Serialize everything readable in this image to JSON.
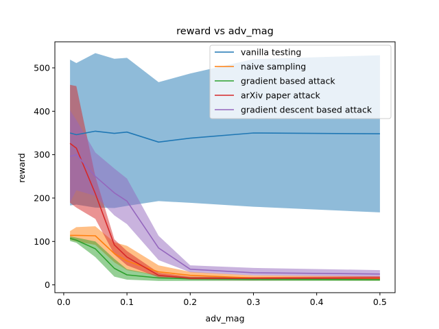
{
  "chart_data": {
    "type": "line",
    "title": "reward vs adv_mag",
    "xlabel": "adv_mag",
    "ylabel": "reward",
    "xlim": [
      -0.014,
      0.524
    ],
    "ylim": [
      -18,
      560
    ],
    "xticks": [
      0.0,
      0.1,
      0.2,
      0.3,
      0.4,
      0.5
    ],
    "xtick_labels": [
      "0.0",
      "0.1",
      "0.2",
      "0.3",
      "0.4",
      "0.5"
    ],
    "yticks": [
      0,
      100,
      200,
      300,
      400,
      500
    ],
    "ytick_labels": [
      "0",
      "100",
      "200",
      "300",
      "400",
      "500"
    ],
    "grid": false,
    "legend_position": "top-right",
    "x": [
      0.01,
      0.02,
      0.05,
      0.08,
      0.1,
      0.15,
      0.2,
      0.3,
      0.5
    ],
    "series": [
      {
        "name": "vanilla testing",
        "color": "#1f77b4",
        "values": [
          350,
          346,
          354,
          349,
          352,
          329,
          338,
          350,
          348
        ],
        "lower": [
          183,
          185,
          178,
          177,
          182,
          193,
          189,
          180,
          167
        ],
        "upper": [
          519,
          511,
          534,
          521,
          523,
          467,
          487,
          520,
          529
        ]
      },
      {
        "name": "naive sampling",
        "color": "#ff7f0e",
        "values": [
          114,
          114,
          113,
          72,
          55,
          30,
          22,
          16,
          15
        ],
        "lower": [
          104,
          100,
          92,
          52,
          34,
          21,
          14,
          11,
          10
        ],
        "upper": [
          124,
          133,
          135,
          98,
          90,
          45,
          30,
          22,
          20
        ]
      },
      {
        "name": "gradient based attack",
        "color": "#2ca02c",
        "values": [
          107,
          103,
          83,
          38,
          23,
          16,
          14,
          13,
          12
        ],
        "lower": [
          101,
          97,
          64,
          19,
          12,
          9,
          9,
          9,
          9
        ],
        "upper": [
          112,
          109,
          100,
          60,
          36,
          22,
          18,
          17,
          15
        ]
      },
      {
        "name": "arXiv paper attack",
        "color": "#d62728",
        "values": [
          326,
          315,
          210,
          92,
          64,
          22,
          15,
          15,
          16
        ],
        "lower": [
          189,
          178,
          152,
          70,
          45,
          17,
          12,
          11,
          12
        ],
        "upper": [
          461,
          458,
          250,
          105,
          78,
          28,
          19,
          18,
          20
        ]
      },
      {
        "name": "gradient descent based attack",
        "color": "#9467bd",
        "values": [
          296,
          300,
          250,
          212,
          193,
          85,
          36,
          28,
          25
        ],
        "lower": [
          190,
          218,
          205,
          160,
          140,
          57,
          29,
          22,
          19
        ],
        "upper": [
          402,
          380,
          305,
          268,
          245,
          113,
          45,
          39,
          34
        ]
      }
    ]
  }
}
